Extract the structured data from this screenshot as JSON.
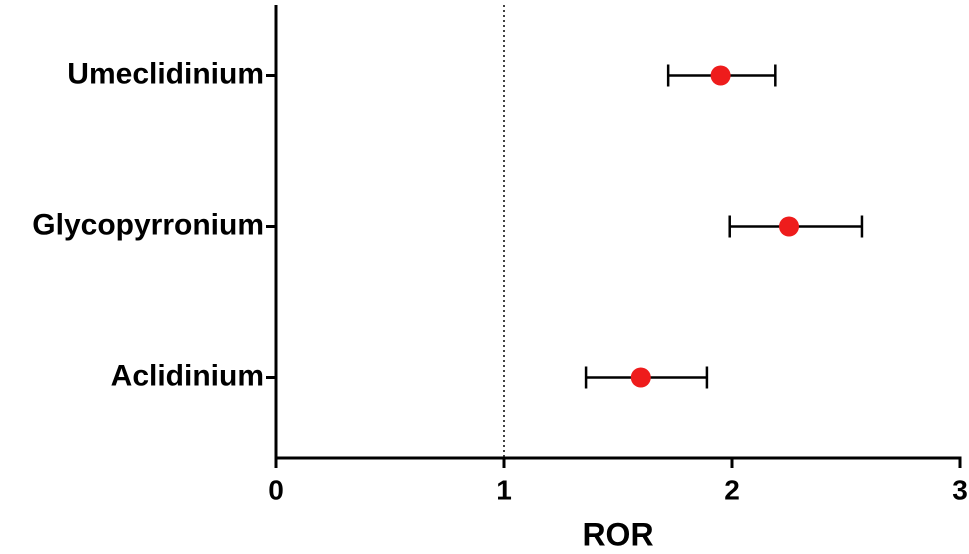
{
  "chart_data": {
    "type": "forest",
    "x_label": "ROR",
    "categories": [
      "Umeclidinium",
      "Glycopyrronium",
      "Aclidinium"
    ],
    "values": [
      1.95,
      2.25,
      1.6
    ],
    "lower": [
      1.72,
      1.99,
      1.36
    ],
    "upper": [
      2.19,
      2.57,
      1.89
    ],
    "color": "#ee1c1c",
    "reference_line": 1,
    "xlim": [
      0,
      3
    ],
    "xticks": [
      0,
      1,
      2,
      3
    ]
  }
}
